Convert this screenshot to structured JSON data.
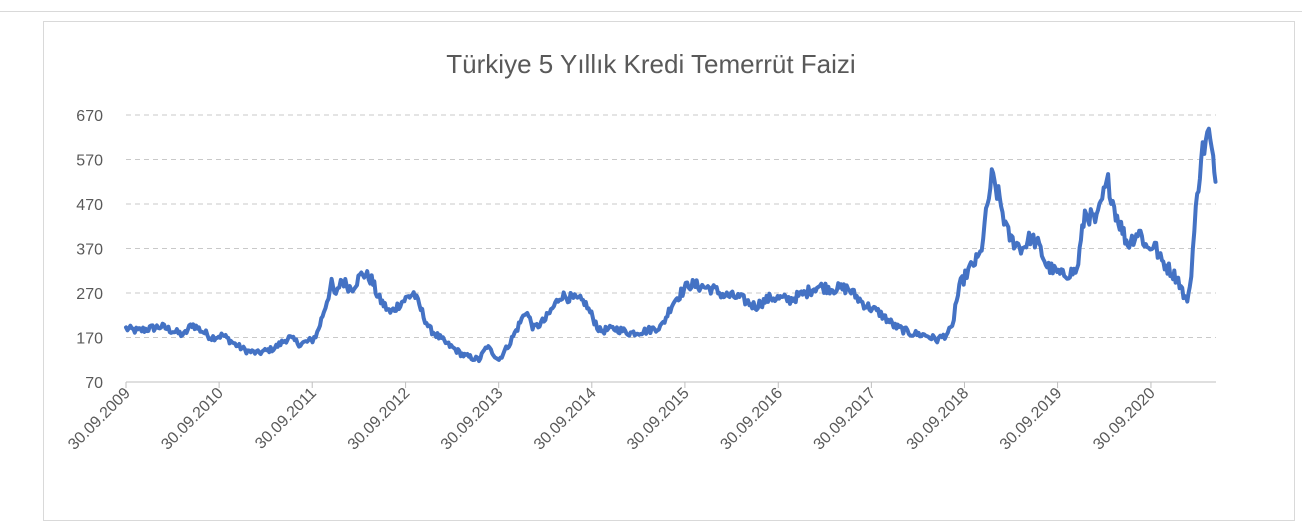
{
  "chart_data": {
    "type": "line",
    "title": "Türkiye 5 Yıllık Kredi Temerrüt Faizi",
    "xlabel": "",
    "ylabel": "",
    "ylim": [
      70,
      670
    ],
    "yticks": [
      "670",
      "570",
      "470",
      "370",
      "270",
      "170",
      "70"
    ],
    "ytick_values": [
      670,
      570,
      470,
      370,
      270,
      170,
      70
    ],
    "xticks": [
      "30.09.2009",
      "30.09.2010",
      "30.09.2011",
      "30.09.2012",
      "30.09.2013",
      "30.09.2014",
      "30.09.2015",
      "30.09.2016",
      "30.09.2017",
      "30.09.2018",
      "30.09.2019",
      "30.09.2020"
    ],
    "grid": "horizontal dashed",
    "legend": "none",
    "line_color": "#4472c4",
    "series": [
      {
        "name": "",
        "x": [
          "2009-09-30",
          "2009-11-15",
          "2010-01-01",
          "2010-02-15",
          "2010-04-01",
          "2010-05-15",
          "2010-06-15",
          "2010-09-01",
          "2010-10-15",
          "2010-12-01",
          "2011-01-15",
          "2011-03-01",
          "2011-05-01",
          "2011-07-01",
          "2011-08-15",
          "2011-10-01",
          "2011-10-20",
          "2011-11-15",
          "2011-12-15",
          "2012-01-01",
          "2012-01-20",
          "2012-03-01",
          "2012-04-15",
          "2012-05-20",
          "2012-06-15",
          "2012-08-01",
          "2012-09-15",
          "2012-11-01",
          "2013-01-01",
          "2013-03-01",
          "2013-05-15",
          "2013-06-15",
          "2013-07-15",
          "2013-08-15",
          "2013-10-01",
          "2013-11-15",
          "2014-01-15",
          "2014-02-15",
          "2014-04-01",
          "2014-06-01",
          "2014-09-01",
          "2014-11-01",
          "2015-01-01",
          "2015-03-01",
          "2015-05-01",
          "2015-07-01",
          "2015-08-15",
          "2015-09-15",
          "2015-10-15",
          "2015-12-01",
          "2016-01-15",
          "2016-03-01",
          "2016-05-01",
          "2016-07-01",
          "2016-09-01",
          "2016-11-15",
          "2017-01-15",
          "2017-03-01",
          "2017-05-01",
          "2017-07-01",
          "2017-09-01",
          "2017-11-01",
          "2018-01-01",
          "2018-03-01",
          "2018-05-01",
          "2018-06-15",
          "2018-07-15",
          "2018-08-13",
          "2018-08-25",
          "2018-09-15",
          "2018-10-15",
          "2018-12-01",
          "2019-01-15",
          "2019-02-15",
          "2019-03-15",
          "2019-04-01",
          "2019-05-15",
          "2019-06-15",
          "2019-07-15",
          "2019-08-20",
          "2019-10-15",
          "2019-12-15",
          "2020-01-15",
          "2020-03-01",
          "2020-03-23",
          "2020-04-15",
          "2020-05-15",
          "2020-07-01",
          "2020-08-15",
          "2020-09-15",
          "2020-10-15",
          "2020-11-01",
          "2020-12-15",
          "2021-01-15",
          "2021-02-15",
          "2021-03-01",
          "2021-03-25",
          "2021-04-15",
          "2021-05-15",
          "2021-06-01",
          "2021-06-10"
        ],
        "y": [
          190,
          185,
          190,
          195,
          185,
          175,
          200,
          170,
          175,
          155,
          140,
          135,
          145,
          170,
          155,
          165,
          180,
          230,
          290,
          260,
          300,
          280,
          315,
          300,
          260,
          225,
          250,
          270,
          190,
          160,
          130,
          125,
          120,
          150,
          120,
          160,
          230,
          190,
          210,
          265,
          250,
          185,
          190,
          180,
          185,
          195,
          250,
          270,
          290,
          285,
          280,
          265,
          260,
          240,
          260,
          255,
          270,
          285,
          280,
          280,
          245,
          225,
          195,
          180,
          175,
          165,
          175,
          190,
          240,
          290,
          320,
          355,
          530,
          480,
          410,
          390,
          370,
          395,
          380,
          330,
          310,
          320,
          450,
          430,
          480,
          520,
          450,
          380,
          410,
          370,
          380,
          350,
          320,
          300,
          250,
          280,
          450,
          580,
          630,
          560,
          520
        ]
      }
    ]
  }
}
